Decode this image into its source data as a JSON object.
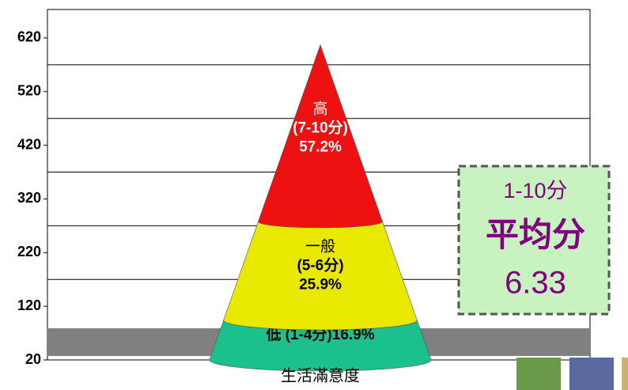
{
  "chart_data": {
    "type": "cone",
    "x_label": "生活滿意度",
    "ylim": [
      20,
      673
    ],
    "yticks": [
      20,
      120,
      220,
      320,
      420,
      520,
      620
    ],
    "gridlines": [
      70,
      170,
      270,
      370,
      470,
      570
    ],
    "segments": [
      {
        "value": 74,
        "color": "#1cc08c",
        "label_lines": [
          "低 (1-4分)16.9%"
        ]
      },
      {
        "value": 184,
        "color": "#e8e800",
        "label_lines": [
          "一般",
          "(5-6分)",
          "25.9%"
        ]
      },
      {
        "value": 329,
        "color": "#ee1111",
        "label_lines": [
          "高",
          "(7-10分)",
          "57.2%"
        ]
      }
    ],
    "callout": {
      "line1": "1-10分",
      "line2": "平均分",
      "line3": "6.33"
    }
  }
}
